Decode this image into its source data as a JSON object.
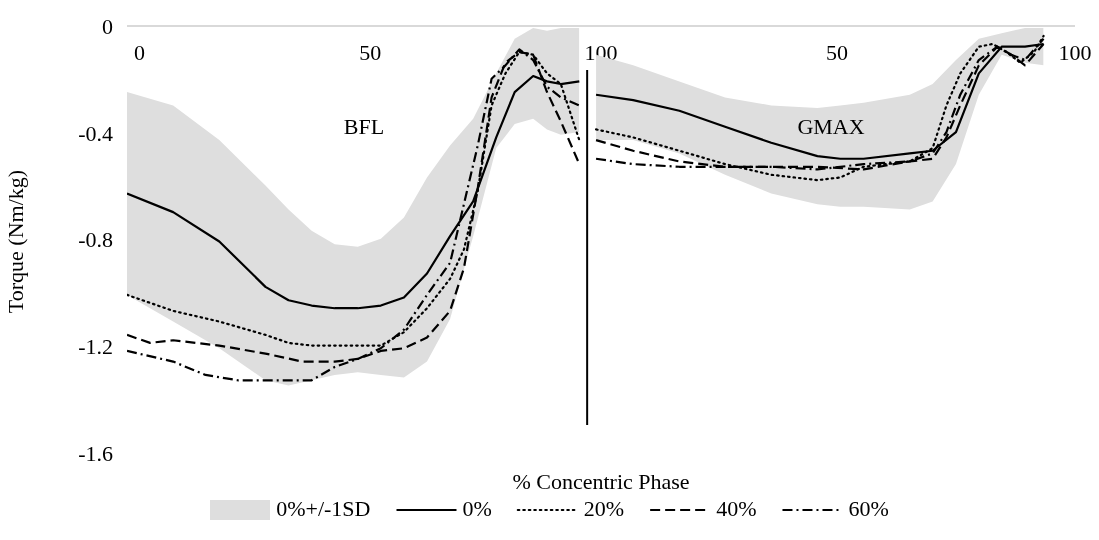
{
  "chart_data": [
    {
      "type": "line",
      "ylabel": "Torque (Nm/kg)",
      "xlabel": "% Concentric Phase",
      "annotations": [
        "BFL"
      ],
      "legend_title": "0%+/-1SD",
      "xlim": [
        -2.7,
        100
      ],
      "xticks": [
        0,
        50,
        100
      ],
      "ylim": [
        -1.6,
        0
      ],
      "yticks": [
        0,
        -0.4,
        -0.8,
        -1.2,
        -1.6
      ],
      "legend": "bottom",
      "ref_lines": [
        {
          "axis": "x",
          "value": 97,
          "color": "#000000"
        }
      ],
      "series": [
        {
          "name": "0%",
          "color": "#000000",
          "line_style": "solid",
          "x": [
            -2.7,
            7.3,
            17.3,
            27.3,
            32.3,
            37.3,
            42.3,
            47.3,
            52.3,
            57.3,
            62.3,
            67.3,
            72.3,
            77.3,
            81.3,
            85.3,
            88.3,
            91.3,
            95.3
          ],
          "values": [
            -0.62,
            -0.69,
            -0.8,
            -0.97,
            -1.02,
            -1.04,
            -1.05,
            -1.05,
            -1.04,
            -1.01,
            -0.92,
            -0.78,
            -0.65,
            -0.41,
            -0.24,
            -0.18,
            -0.2,
            -0.21,
            -0.2
          ],
          "upper": [
            -0.24,
            -0.29,
            -0.42,
            -0.59,
            -0.68,
            -0.76,
            -0.81,
            -0.82,
            -0.79,
            -0.71,
            -0.56,
            -0.44,
            -0.34,
            -0.17,
            -0.04,
            0,
            -0.01,
            0,
            0
          ],
          "lower": [
            -1.0,
            -1.1,
            -1.2,
            -1.32,
            -1.34,
            -1.32,
            -1.3,
            -1.29,
            -1.3,
            -1.31,
            -1.25,
            -1.09,
            -0.78,
            -0.45,
            -0.36,
            -0.34,
            -0.38,
            -0.4,
            -0.39
          ]
        },
        {
          "name": "20%",
          "color": "#000000",
          "line_style": "dotted",
          "x": [
            -2.7,
            7.3,
            17.3,
            27.3,
            32.3,
            37.3,
            47.3,
            52.3,
            57.3,
            62.3,
            67.3,
            70.3,
            73.3,
            76.3,
            79.3,
            82.3,
            85.3,
            88.3,
            91.3,
            95.3
          ],
          "values": [
            -1.0,
            -1.06,
            -1.1,
            -1.15,
            -1.18,
            -1.19,
            -1.19,
            -1.19,
            -1.14,
            -1.05,
            -0.94,
            -0.83,
            -0.61,
            -0.29,
            -0.17,
            -0.09,
            -0.1,
            -0.17,
            -0.21,
            -0.42
          ]
        },
        {
          "name": "40%",
          "color": "#000000",
          "line_style": "dashed",
          "x": [
            -2.7,
            2.3,
            7.3,
            17.3,
            27.3,
            35.3,
            42.3,
            47.3,
            52.3,
            57.3,
            62.3,
            67.3,
            70.3,
            73.3,
            76.3,
            79.3,
            82.3,
            85.3,
            88.3,
            91.3,
            95.3
          ],
          "values": [
            -1.15,
            -1.18,
            -1.17,
            -1.19,
            -1.22,
            -1.25,
            -1.25,
            -1.24,
            -1.21,
            -1.2,
            -1.16,
            -1.06,
            -0.9,
            -0.6,
            -0.26,
            -0.13,
            -0.09,
            -0.1,
            -0.24,
            -0.35,
            -0.51
          ]
        },
        {
          "name": "60%",
          "color": "#000000",
          "line_style": "dashdot",
          "x": [
            -2.7,
            7.3,
            14.3,
            21.3,
            27.3,
            37.3,
            42.3,
            47.3,
            52.3,
            57.3,
            62.3,
            67.3,
            70.3,
            73.3,
            76.3,
            79.3,
            82.3,
            85.3,
            88.3,
            91.3,
            95.3
          ],
          "values": [
            -1.21,
            -1.25,
            -1.3,
            -1.32,
            -1.32,
            -1.32,
            -1.27,
            -1.24,
            -1.2,
            -1.13,
            -1.0,
            -0.88,
            -0.66,
            -0.44,
            -0.19,
            -0.14,
            -0.08,
            -0.12,
            -0.22,
            -0.26,
            -0.29
          ]
        }
      ]
    },
    {
      "type": "line",
      "annotations": [
        "GMAX"
      ],
      "xlim": [
        -2.5,
        100
      ],
      "xticks": [
        50,
        100
      ],
      "ylim": [
        -1.6,
        0
      ],
      "tick_labels": "x",
      "series": [
        {
          "color": "#000000",
          "line_style": "solid",
          "x": [
            -0.6,
            7.2,
            16.9,
            26.5,
            36.2,
            45.9,
            50.7,
            55.6,
            65.3,
            70.1,
            75.0,
            79.8,
            84.6,
            89.5,
            93.4
          ],
          "values": [
            -0.25,
            -0.27,
            -0.31,
            -0.37,
            -0.43,
            -0.48,
            -0.49,
            -0.49,
            -0.47,
            -0.46,
            -0.39,
            -0.17,
            -0.07,
            -0.07,
            -0.06
          ],
          "upper": [
            -0.1,
            -0.14,
            -0.2,
            -0.26,
            -0.29,
            -0.3,
            -0.29,
            -0.28,
            -0.25,
            -0.21,
            -0.12,
            -0.04,
            -0.02,
            0,
            0
          ],
          "lower": [
            -0.42,
            -0.42,
            -0.47,
            -0.55,
            -0.62,
            -0.66,
            -0.67,
            -0.67,
            -0.68,
            -0.65,
            -0.51,
            -0.25,
            -0.1,
            -0.13,
            -0.14
          ]
        },
        {
          "color": "#000000",
          "line_style": "dotted",
          "x": [
            -0.6,
            7.2,
            16.9,
            26.5,
            36.2,
            45.9,
            50.7,
            55.6,
            65.3,
            70.1,
            73.0,
            75.9,
            79.8,
            82.7,
            85.6,
            88.5,
            91.4,
            93.4
          ],
          "values": [
            -0.38,
            -0.41,
            -0.46,
            -0.51,
            -0.55,
            -0.57,
            -0.56,
            -0.52,
            -0.5,
            -0.45,
            -0.29,
            -0.17,
            -0.07,
            -0.06,
            -0.09,
            -0.13,
            -0.09,
            -0.03
          ]
        },
        {
          "color": "#000000",
          "line_style": "dashed",
          "x": [
            -0.6,
            7.2,
            16.9,
            26.5,
            36.2,
            45.9,
            55.6,
            65.3,
            70.1,
            73.0,
            75.9,
            79.8,
            83.7,
            86.6,
            89.5,
            93.4
          ],
          "values": [
            -0.42,
            -0.46,
            -0.5,
            -0.52,
            -0.52,
            -0.52,
            -0.53,
            -0.5,
            -0.49,
            -0.41,
            -0.29,
            -0.14,
            -0.07,
            -0.1,
            -0.14,
            -0.06
          ]
        },
        {
          "color": "#000000",
          "line_style": "dashdot",
          "x": [
            -0.6,
            7.2,
            16.9,
            26.5,
            36.2,
            45.9,
            55.6,
            65.3,
            70.1,
            73.0,
            75.9,
            79.8,
            83.7,
            86.6,
            89.5,
            93.4
          ],
          "values": [
            -0.49,
            -0.51,
            -0.52,
            -0.52,
            -0.52,
            -0.53,
            -0.51,
            -0.5,
            -0.47,
            -0.39,
            -0.25,
            -0.12,
            -0.07,
            -0.1,
            -0.12,
            -0.04
          ]
        }
      ]
    }
  ]
}
